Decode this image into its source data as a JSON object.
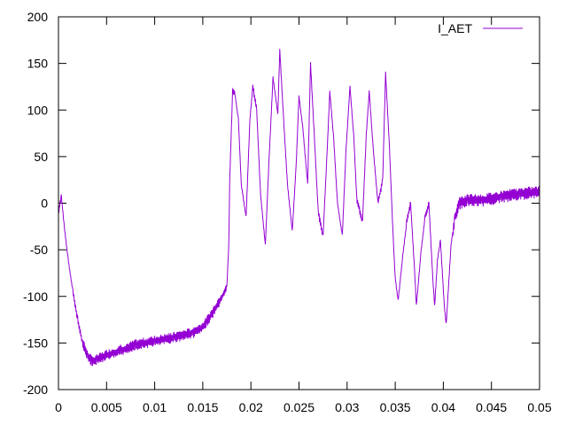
{
  "chart_data": {
    "type": "line",
    "title": "",
    "xlabel": "",
    "ylabel": "",
    "xlim": [
      0,
      0.05
    ],
    "ylim": [
      -200,
      200
    ],
    "x_ticks": [
      "0",
      "0.005",
      "0.01",
      "0.015",
      "0.02",
      "0.025",
      "0.03",
      "0.035",
      "0.04",
      "0.045",
      "0.05"
    ],
    "y_ticks": [
      "-200",
      "-150",
      "-100",
      "-50",
      "0",
      "50",
      "100",
      "150",
      "200"
    ],
    "grid": false,
    "legend_position": "top-right",
    "series": [
      {
        "name": "I_AET",
        "color": "#9400d3",
        "points": [
          [
            0,
            -10
          ],
          [
            0.0003,
            8
          ],
          [
            0.0006,
            -25
          ],
          [
            0.001,
            -60
          ],
          [
            0.0015,
            -95
          ],
          [
            0.002,
            -125
          ],
          [
            0.0025,
            -150
          ],
          [
            0.003,
            -163
          ],
          [
            0.0035,
            -170
          ],
          [
            0.004,
            -168
          ],
          [
            0.005,
            -163
          ],
          [
            0.0065,
            -158
          ],
          [
            0.008,
            -152
          ],
          [
            0.01,
            -148
          ],
          [
            0.012,
            -144
          ],
          [
            0.014,
            -139
          ],
          [
            0.015,
            -133
          ],
          [
            0.016,
            -118
          ],
          [
            0.017,
            -100
          ],
          [
            0.0175,
            -90
          ],
          [
            0.0177,
            -45
          ],
          [
            0.0178,
            25
          ],
          [
            0.0181,
            120
          ],
          [
            0.0183,
            120
          ],
          [
            0.0187,
            90
          ],
          [
            0.019,
            20
          ],
          [
            0.0195,
            -15
          ],
          [
            0.0199,
            90
          ],
          [
            0.0202,
            125
          ],
          [
            0.0206,
            100
          ],
          [
            0.021,
            10
          ],
          [
            0.0215,
            -45
          ],
          [
            0.0219,
            50
          ],
          [
            0.0223,
            135
          ],
          [
            0.0228,
            95
          ],
          [
            0.023,
            165
          ],
          [
            0.0234,
            90
          ],
          [
            0.0238,
            20
          ],
          [
            0.0243,
            -30
          ],
          [
            0.0247,
            40
          ],
          [
            0.025,
            115
          ],
          [
            0.0254,
            80
          ],
          [
            0.0259,
            20
          ],
          [
            0.0262,
            150
          ],
          [
            0.0266,
            70
          ],
          [
            0.027,
            -10
          ],
          [
            0.0275,
            -35
          ],
          [
            0.0279,
            50
          ],
          [
            0.0282,
            120
          ],
          [
            0.0286,
            70
          ],
          [
            0.029,
            0
          ],
          [
            0.0295,
            -35
          ],
          [
            0.0299,
            60
          ],
          [
            0.0303,
            125
          ],
          [
            0.0307,
            70
          ],
          [
            0.031,
            5
          ],
          [
            0.0316,
            -20
          ],
          [
            0.032,
            75
          ],
          [
            0.0323,
            120
          ],
          [
            0.0327,
            60
          ],
          [
            0.0332,
            0
          ],
          [
            0.0337,
            25
          ],
          [
            0.034,
            140
          ],
          [
            0.0344,
            60
          ],
          [
            0.0348,
            -40
          ],
          [
            0.035,
            -80
          ],
          [
            0.0353,
            -105
          ],
          [
            0.0358,
            -55
          ],
          [
            0.0362,
            -20
          ],
          [
            0.0366,
            0
          ],
          [
            0.037,
            -70
          ],
          [
            0.0372,
            -110
          ],
          [
            0.0377,
            -50
          ],
          [
            0.0381,
            -15
          ],
          [
            0.0385,
            0
          ],
          [
            0.0389,
            -80
          ],
          [
            0.0391,
            -110
          ],
          [
            0.0394,
            -60
          ],
          [
            0.0397,
            -40
          ],
          [
            0.0401,
            -110
          ],
          [
            0.0403,
            -130
          ],
          [
            0.0408,
            -45
          ],
          [
            0.0412,
            -15
          ],
          [
            0.0417,
            0
          ],
          [
            0.0425,
            3
          ],
          [
            0.044,
            3
          ],
          [
            0.046,
            7
          ],
          [
            0.048,
            10
          ],
          [
            0.05,
            12
          ]
        ]
      }
    ]
  }
}
